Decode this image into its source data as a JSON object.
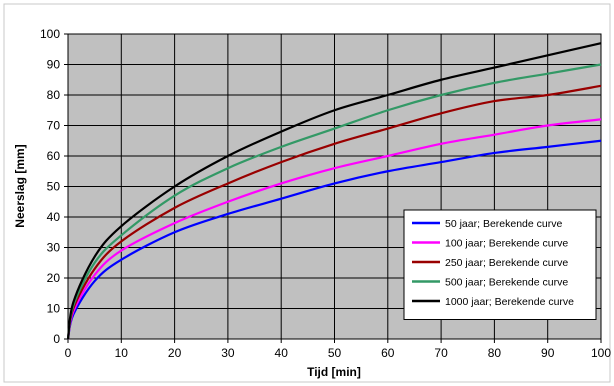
{
  "chart_data": {
    "type": "line",
    "title": "",
    "xlabel": "Tijd [min]",
    "ylabel": "Neerslag [mm]",
    "xlim": [
      0,
      100
    ],
    "ylim": [
      0,
      100
    ],
    "xticks": [
      0,
      10,
      20,
      30,
      40,
      50,
      60,
      70,
      80,
      90,
      100
    ],
    "yticks": [
      0,
      10,
      20,
      30,
      40,
      50,
      60,
      70,
      80,
      90,
      100
    ],
    "grid": true,
    "plot_background": "#c0c0c0",
    "legend_position": "bottom-right",
    "series": [
      {
        "name": "50 jaar; Berekende curve",
        "color": "#0000ff",
        "x": [
          0,
          1,
          5,
          10,
          20,
          30,
          40,
          50,
          60,
          70,
          80,
          90,
          100
        ],
        "y": [
          0,
          8,
          19,
          26,
          35,
          41,
          46,
          51,
          55,
          58,
          61,
          63,
          65
        ]
      },
      {
        "name": "100 jaar; Berekende curve",
        "color": "#ff00ff",
        "x": [
          0,
          1,
          5,
          10,
          20,
          30,
          40,
          50,
          60,
          70,
          80,
          90,
          100
        ],
        "y": [
          0,
          9,
          21,
          29,
          38,
          45,
          51,
          56,
          60,
          64,
          67,
          70,
          72
        ]
      },
      {
        "name": "250 jaar; Berekende curve",
        "color": "#990000",
        "x": [
          0,
          1,
          5,
          10,
          20,
          30,
          40,
          50,
          60,
          70,
          80,
          90,
          100
        ],
        "y": [
          0,
          10,
          23,
          32,
          43,
          51,
          58,
          64,
          69,
          74,
          78,
          80,
          83
        ]
      },
      {
        "name": "500 jaar; Berekende curve",
        "color": "#339966",
        "x": [
          0,
          1,
          5,
          10,
          20,
          30,
          40,
          50,
          60,
          70,
          80,
          90,
          100
        ],
        "y": [
          0,
          11,
          25,
          34,
          47,
          56,
          63,
          69,
          75,
          80,
          84,
          87,
          90
        ]
      },
      {
        "name": "1000 jaar; Berekende curve",
        "color": "#000000",
        "x": [
          0,
          1,
          5,
          10,
          20,
          30,
          40,
          50,
          60,
          70,
          80,
          90,
          100
        ],
        "y": [
          0,
          12,
          27,
          37,
          50,
          60,
          68,
          75,
          80,
          85,
          89,
          93,
          97
        ]
      }
    ]
  }
}
